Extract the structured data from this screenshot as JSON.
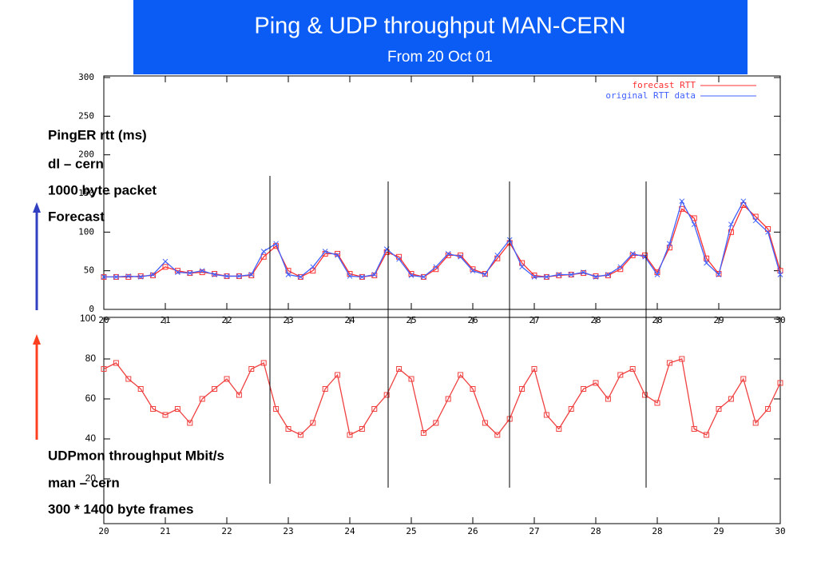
{
  "header": {
    "title": "Ping & UDP throughput MAN-CERN",
    "subtitle": "From 20 Oct 01"
  },
  "notes": {
    "top": [
      "PingER rtt (ms)",
      "dl – cern",
      "1000 byte packet",
      "Forecast"
    ],
    "bottom": [
      "UDPmon throughput Mbit/s",
      "man – cern",
      "300 * 1400 byte frames"
    ]
  },
  "chart_data": [
    {
      "type": "line",
      "legend": "upper right",
      "xlim": [
        0,
        11
      ],
      "ylim": [
        0,
        300
      ],
      "yticks": [
        0,
        50,
        100,
        150,
        200,
        250,
        300
      ],
      "xticks": [
        {
          "value": 0,
          "label": "20"
        },
        {
          "value": 1,
          "label": "21"
        },
        {
          "value": 2,
          "label": "22"
        },
        {
          "value": 3,
          "label": "23"
        },
        {
          "value": 4,
          "label": "24"
        },
        {
          "value": 5,
          "label": "25"
        },
        {
          "value": 6,
          "label": "26"
        },
        {
          "value": 7,
          "label": "27"
        },
        {
          "value": 8,
          "label": "28"
        },
        {
          "value": 9,
          "label": "28"
        },
        {
          "value": 10,
          "label": "29"
        },
        {
          "value": 11,
          "label": "30"
        }
      ],
      "series": [
        {
          "name": "forecast RTT",
          "color": "#ff3030",
          "x": [
            0,
            0.2,
            0.4,
            0.6,
            0.8,
            1,
            1.2,
            1.4,
            1.6,
            1.8,
            2,
            2.2,
            2.4,
            2.6,
            2.8,
            3,
            3.2,
            3.4,
            3.6,
            3.8,
            4,
            4.2,
            4.4,
            4.6,
            4.8,
            5,
            5.2,
            5.4,
            5.6,
            5.8,
            6,
            6.2,
            6.4,
            6.6,
            6.8,
            7,
            7.2,
            7.4,
            7.6,
            7.8,
            8,
            8.2,
            8.4,
            8.6,
            8.8,
            9,
            9.2,
            9.4,
            9.6,
            9.8,
            10,
            10.2,
            10.4,
            10.6,
            10.8,
            11
          ],
          "values": [
            42,
            42,
            42,
            43,
            44,
            55,
            50,
            47,
            48,
            46,
            43,
            43,
            44,
            68,
            82,
            50,
            42,
            50,
            72,
            72,
            46,
            42,
            44,
            74,
            68,
            46,
            42,
            52,
            70,
            70,
            52,
            46,
            66,
            86,
            60,
            44,
            42,
            44,
            45,
            47,
            43,
            44,
            52,
            70,
            70,
            48,
            80,
            130,
            118,
            66,
            46,
            100,
            135,
            120,
            104,
            50
          ]
        },
        {
          "name": "original RTT data",
          "color": "#4060ff",
          "x": [
            0,
            0.2,
            0.4,
            0.6,
            0.8,
            1,
            1.2,
            1.4,
            1.6,
            1.8,
            2,
            2.2,
            2.4,
            2.6,
            2.8,
            3,
            3.2,
            3.4,
            3.6,
            3.8,
            4,
            4.2,
            4.4,
            4.6,
            4.8,
            5,
            5.2,
            5.4,
            5.6,
            5.8,
            6,
            6.2,
            6.4,
            6.6,
            6.8,
            7,
            7.2,
            7.4,
            7.6,
            7.8,
            8,
            8.2,
            8.4,
            8.6,
            8.8,
            9,
            9.2,
            9.4,
            9.6,
            9.8,
            10,
            10.2,
            10.4,
            10.6,
            10.8,
            11
          ],
          "values": [
            42,
            42,
            43,
            42,
            45,
            62,
            48,
            47,
            50,
            45,
            43,
            43,
            45,
            75,
            85,
            45,
            42,
            55,
            75,
            70,
            43,
            42,
            45,
            78,
            65,
            44,
            42,
            55,
            72,
            68,
            50,
            45,
            70,
            90,
            55,
            42,
            42,
            45,
            45,
            48,
            42,
            45,
            55,
            72,
            68,
            45,
            85,
            140,
            110,
            60,
            45,
            110,
            140,
            115,
            100,
            45
          ]
        }
      ]
    },
    {
      "type": "line",
      "xlim": [
        0,
        11
      ],
      "ylim": [
        0,
        100
      ],
      "yticks": [
        20,
        40,
        60,
        80,
        100
      ],
      "xticks": [
        {
          "value": 0,
          "label": "20"
        },
        {
          "value": 1,
          "label": "21"
        },
        {
          "value": 2,
          "label": "22"
        },
        {
          "value": 3,
          "label": "23"
        },
        {
          "value": 4,
          "label": "24"
        },
        {
          "value": 5,
          "label": "25"
        },
        {
          "value": 6,
          "label": "26"
        },
        {
          "value": 7,
          "label": "27"
        },
        {
          "value": 8,
          "label": "28"
        },
        {
          "value": 9,
          "label": "28"
        },
        {
          "value": 10,
          "label": "29"
        },
        {
          "value": 11,
          "label": "30"
        }
      ],
      "series": [
        {
          "color": "#f04040",
          "x": [
            0,
            0.2,
            0.4,
            0.6,
            0.8,
            1,
            1.2,
            1.4,
            1.6,
            1.8,
            2,
            2.2,
            2.4,
            2.6,
            2.8,
            3,
            3.2,
            3.4,
            3.6,
            3.8,
            4,
            4.2,
            4.4,
            4.6,
            4.8,
            5,
            5.2,
            5.4,
            5.6,
            5.8,
            6,
            6.2,
            6.4,
            6.6,
            6.8,
            7,
            7.2,
            7.4,
            7.6,
            7.8,
            8,
            8.2,
            8.4,
            8.6,
            8.8,
            9,
            9.2,
            9.4,
            9.6,
            9.8,
            10,
            10.2,
            10.4,
            10.6,
            10.8,
            11
          ],
          "values": [
            75,
            78,
            70,
            65,
            55,
            52,
            55,
            48,
            60,
            65,
            70,
            62,
            75,
            78,
            55,
            45,
            42,
            48,
            65,
            72,
            42,
            45,
            55,
            62,
            75,
            70,
            43,
            48,
            60,
            72,
            65,
            48,
            42,
            50,
            65,
            75,
            52,
            45,
            55,
            65,
            68,
            60,
            72,
            75,
            62,
            58,
            78,
            80,
            45,
            42,
            55,
            60,
            70,
            48,
            55,
            68
          ]
        }
      ]
    }
  ]
}
